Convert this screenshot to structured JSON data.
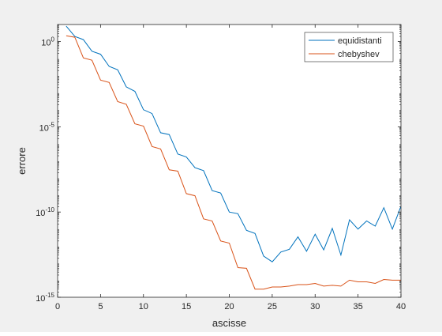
{
  "chart_data": {
    "type": "line",
    "title": "",
    "xlabel": "ascisse",
    "ylabel": "errore",
    "xlim": [
      0,
      40
    ],
    "ylim": [
      1e-15,
      10
    ],
    "yscale": "log",
    "grid": false,
    "legend_position": "top-right",
    "x_ticks": [
      0,
      5,
      10,
      15,
      20,
      25,
      30,
      35,
      40
    ],
    "x_tick_labels": [
      "0",
      "5",
      "10",
      "15",
      "20",
      "25",
      "30",
      "35",
      "40"
    ],
    "y_ticks": [
      1e-15,
      1e-10,
      1e-05,
      1
    ],
    "y_tick_labels": [
      {
        "base": "10",
        "exp": "-15"
      },
      {
        "base": "10",
        "exp": "-10"
      },
      {
        "base": "10",
        "exp": "-5"
      },
      {
        "base": "10",
        "exp": "0"
      }
    ],
    "series": [
      {
        "name": "equidistanti",
        "color": "#0072bd",
        "x": [
          1,
          2,
          3,
          4,
          5,
          6,
          7,
          8,
          9,
          10,
          11,
          12,
          13,
          14,
          15,
          16,
          17,
          18,
          19,
          20,
          21,
          22,
          23,
          24,
          25,
          26,
          27,
          28,
          29,
          30,
          31,
          32,
          33,
          34,
          35,
          36,
          37,
          38,
          39,
          40
        ],
        "y": [
          8.0,
          2.0,
          1.3,
          0.27,
          0.18,
          0.035,
          0.022,
          0.0022,
          0.0012,
          0.0001,
          6e-05,
          4.5e-06,
          3.5e-06,
          2.5e-07,
          1.7e-07,
          4e-08,
          2.7e-08,
          1.8e-09,
          1.3e-09,
          1e-10,
          8e-11,
          8.5e-12,
          5.5e-12,
          2.6e-13,
          1.2e-13,
          4.5e-13,
          6.5e-13,
          3.5e-12,
          5e-13,
          5e-12,
          6e-13,
          1.1e-11,
          3e-13,
          3.5e-11,
          1e-11,
          3e-11,
          1.5e-11,
          1.8e-10,
          1e-11,
          2.2e-10
        ]
      },
      {
        "name": "chebyshev",
        "color": "#d95319",
        "x": [
          1,
          2,
          3,
          4,
          5,
          6,
          7,
          8,
          9,
          10,
          11,
          12,
          13,
          14,
          15,
          16,
          17,
          18,
          19,
          20,
          21,
          22,
          23,
          24,
          25,
          26,
          27,
          28,
          29,
          30,
          31,
          32,
          33,
          34,
          35,
          36,
          37,
          38,
          39,
          40
        ],
        "y": [
          2.2,
          1.8,
          0.11,
          0.08,
          0.0055,
          0.004,
          0.0003,
          0.00021,
          1.5e-05,
          1.1e-05,
          7e-07,
          5e-07,
          3e-08,
          2.5e-08,
          1.2e-09,
          9e-10,
          4e-11,
          3e-11,
          2e-12,
          1.5e-12,
          5.5e-14,
          5e-14,
          3e-15,
          3e-15,
          4e-15,
          4e-15,
          4.5e-15,
          5.5e-15,
          5.5e-15,
          6.5e-15,
          4.5e-15,
          5e-15,
          4.5e-15,
          1e-14,
          8e-15,
          8e-15,
          6.5e-15,
          1.1e-14,
          1e-14,
          1e-14
        ]
      }
    ]
  }
}
